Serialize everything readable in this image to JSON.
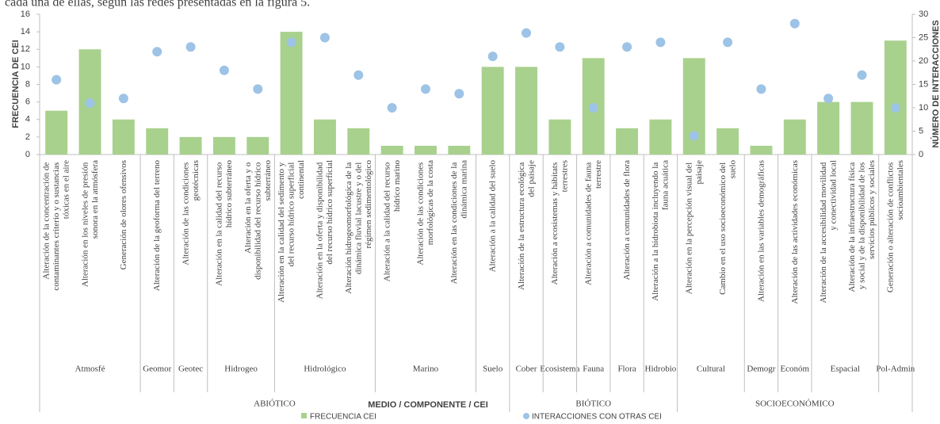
{
  "chart_data": {
    "type": "bar+scatter",
    "title": "cada una de ellas, según las redes presentadas en la figura 5.",
    "ylabel": "FRECUENCIA DE CEI",
    "y2label": "NÚMERO DE INTERACCIONES",
    "xlabel": "MEDIO / COMPONENTE / CEI",
    "categories": [
      "Alteración de la concentración de contaminantes criterio y o sustancias tóxicas en el aire",
      "Alteración en los niveles de presión sonora en la atmósfera",
      "Generación de olores ofensivos",
      "Alteración de la geoforma del terreno",
      "Alteración de las condiciones geotécnicas",
      "Alteración en la calidad del recurso hídrico subterráneo",
      "Alteración en la oferta y o disponibilidad del recurso hídrico subterráneo",
      "Alteración en la calidad del sedimento y del recurso hídrico superficial continental",
      "Alteración en la oferta y disponibilidad del recurso hídrico superficial",
      "Alteración hidrogeomorfológica de la dinámica fluvial lacustre y o del régimen sedimentológico",
      "Alteración a la calidad del recurso hídrico marino",
      "Alteración de las condiciones morfológicas de la costa",
      "Alteración en las condiciones de la dinámica marina",
      "Alteración a la calidad del suelo",
      "Alteración de la estructura ecológica del paisaje",
      "Alteración a ecosistemas y hábitats terrestres",
      "Alteración a comunidades de fauna terrestre",
      "Alteración a comunidades de flora",
      "Alteración a la hidrobiota incluyendo la fauna acuática",
      "Alteración en la percepción visual del paisaje",
      "Cambio en el uso socioeconómico del suelo",
      "Alteración en las variables demográficas",
      "Alteración de las actividades económicas",
      "Alteración de la accesibilidad movilidad y conectividad local",
      "Alteración de la infraestructura física y social y de la disponibilidad de los servicios públicos y sociales",
      "Generación o alteración de conflictos socioambientales"
    ],
    "groups": [
      {
        "name": "Atmosfé",
        "count": 3
      },
      {
        "name": "Geomor",
        "count": 1
      },
      {
        "name": "Geotec",
        "count": 1
      },
      {
        "name": "Hidrogeo",
        "count": 2
      },
      {
        "name": "Hidrológico",
        "count": 3
      },
      {
        "name": "Marino",
        "count": 3
      },
      {
        "name": "Suelo",
        "count": 1
      },
      {
        "name": "Cober",
        "count": 1
      },
      {
        "name": "Ecosistema",
        "count": 1
      },
      {
        "name": "Fauna",
        "count": 1
      },
      {
        "name": "Flora",
        "count": 1
      },
      {
        "name": "Hidrobio",
        "count": 1
      },
      {
        "name": "Cultural",
        "count": 2
      },
      {
        "name": "Demogr",
        "count": 1
      },
      {
        "name": "Económ",
        "count": 1
      },
      {
        "name": "Espacial",
        "count": 2
      },
      {
        "name": "Pol-Admin",
        "count": 1
      }
    ],
    "media": [
      {
        "name": "ABIÓTICO",
        "count": 14
      },
      {
        "name": "BIÓTICO",
        "count": 5
      },
      {
        "name": "SOCIOECONÓMICO",
        "count": 7
      }
    ],
    "series": [
      {
        "name": "FRECUENCIA CEI",
        "type": "bar",
        "color": "#a9d18e",
        "values": [
          5,
          12,
          4,
          3,
          2,
          2,
          2,
          14,
          4,
          3,
          1,
          1,
          1,
          10,
          10,
          4,
          11,
          3,
          4,
          11,
          3,
          1,
          4,
          6,
          6,
          13
        ]
      },
      {
        "name": "INTERACCIONES CON OTRAS CEI",
        "type": "scatter",
        "axis": "y2",
        "color": "#9dc3e6",
        "values": [
          16,
          11,
          12,
          22,
          23,
          18,
          14,
          24,
          25,
          17,
          10,
          14,
          13,
          21,
          26,
          23,
          10,
          23,
          24,
          4,
          24,
          14,
          28,
          12,
          17,
          10
        ]
      }
    ],
    "ylim": [
      0,
      16
    ],
    "yticks": [
      0,
      2,
      4,
      6,
      8,
      10,
      12,
      14,
      16
    ],
    "y2lim": [
      0,
      30
    ],
    "y2ticks": [
      0,
      5,
      10,
      15,
      20,
      25,
      30
    ],
    "legend": "bottom"
  }
}
